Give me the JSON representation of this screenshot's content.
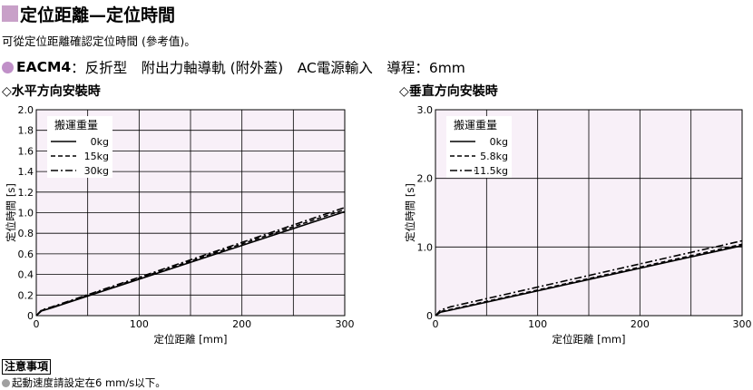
{
  "header": {
    "title": "定位距離—定位時間",
    "subtitle": "可從定位距離確認定位時間 (參考值)。",
    "model_name": "EACM4",
    "model_desc": "：反折型　附出力軸導軌 (附外蓋)　AC電源輸入　導程：6mm",
    "accent_color": "#c8a0c8"
  },
  "sections": {
    "left_label": "◇水平方向安裝時",
    "right_label": "◇垂直方向安裝時"
  },
  "chart_data": [
    {
      "type": "line",
      "title": "水平方向安裝時",
      "xlabel": "定位距離 [mm]",
      "ylabel": "定位時間 [s]",
      "xlim": [
        0,
        300
      ],
      "ylim": [
        0,
        2.0
      ],
      "xticks": [
        "0",
        "100",
        "200",
        "300"
      ],
      "yticks": [
        "0",
        "0.2",
        "0.4",
        "0.6",
        "0.8",
        "1.0",
        "1.2",
        "1.4",
        "1.6",
        "1.8",
        "2.0"
      ],
      "grid": true,
      "plot_background": "#f8f0f8",
      "legend_title": "搬運重量",
      "legend_position": "top-left",
      "series": [
        {
          "name": "0kg",
          "style": "solid",
          "x": [
            0,
            5,
            15,
            300
          ],
          "y": [
            0,
            0.045,
            0.075,
            1.01
          ]
        },
        {
          "name": "15kg",
          "style": "dashed",
          "x": [
            0,
            5,
            15,
            300
          ],
          "y": [
            0,
            0.05,
            0.08,
            1.03
          ]
        },
        {
          "name": "30kg",
          "style": "dashdot",
          "x": [
            0,
            5,
            15,
            300
          ],
          "y": [
            0,
            0.055,
            0.085,
            1.05
          ]
        }
      ]
    },
    {
      "type": "line",
      "title": "垂直方向安裝時",
      "xlabel": "定位距離 [mm]",
      "ylabel": "定位時間 [s]",
      "xlim": [
        0,
        300
      ],
      "ylim": [
        0,
        3.0
      ],
      "xticks": [
        "0",
        "100",
        "200",
        "300"
      ],
      "yticks": [
        "0",
        "1.0",
        "2.0",
        "3.0"
      ],
      "grid": true,
      "plot_background": "#f8f0f8",
      "legend_title": "搬運重量",
      "legend_position": "top-left",
      "series": [
        {
          "name": "0kg",
          "style": "solid",
          "x": [
            0,
            5,
            15,
            300
          ],
          "y": [
            0,
            0.05,
            0.08,
            1.02
          ]
        },
        {
          "name": "5.8kg",
          "style": "dashed",
          "x": [
            0,
            5,
            15,
            300
          ],
          "y": [
            0,
            0.06,
            0.09,
            1.04
          ]
        },
        {
          "name": "11.5kg",
          "style": "dashdot",
          "x": [
            0,
            5,
            15,
            300
          ],
          "y": [
            0,
            0.08,
            0.13,
            1.09
          ]
        }
      ]
    }
  ],
  "footer": {
    "notice_label": "注意事項",
    "note_text": "起動速度請設定在6 mm/s以下。"
  }
}
